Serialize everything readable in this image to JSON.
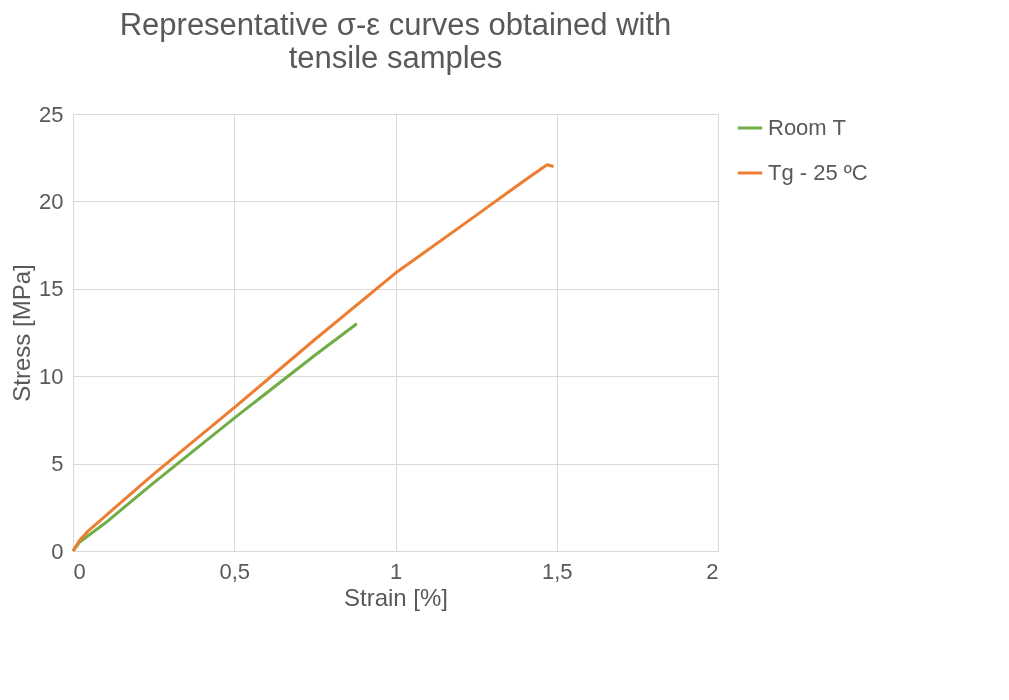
{
  "chart_data": {
    "type": "line",
    "title": "Representative σ-ε curves obtained with tensile samples",
    "xlabel": "Strain [%]",
    "ylabel": "Stress [MPa]",
    "xlim": [
      0,
      2
    ],
    "xticks": [
      0,
      {
        "value": 0.5,
        "label": "0,5"
      },
      1,
      {
        "value": 1.5,
        "label": "1,5"
      },
      2
    ],
    "ylim": [
      0,
      25
    ],
    "yticks": [
      0,
      5,
      10,
      15,
      20,
      25
    ],
    "grid": true,
    "legend": "right",
    "marker": "none",
    "line_style": "solid",
    "series": [
      {
        "name": "Room T",
        "color": "#70ad47",
        "x": [
          0,
          0.02,
          0.1,
          0.25,
          0.5,
          0.75,
          0.88
        ],
        "values": [
          0,
          0.5,
          1.6,
          3.9,
          7.6,
          11.2,
          13
        ]
      },
      {
        "name": "Tg - 25 ºC",
        "color": "#ed7d31",
        "x": [
          0,
          0.02,
          0.05,
          0.1,
          0.25,
          0.5,
          0.75,
          1.0,
          1.25,
          1.4,
          1.47,
          1.49
        ],
        "values": [
          0,
          0.6,
          1.2,
          2,
          4.4,
          8.2,
          12.1,
          15.9,
          19.2,
          21.2,
          22.1,
          22.0
        ]
      }
    ]
  }
}
